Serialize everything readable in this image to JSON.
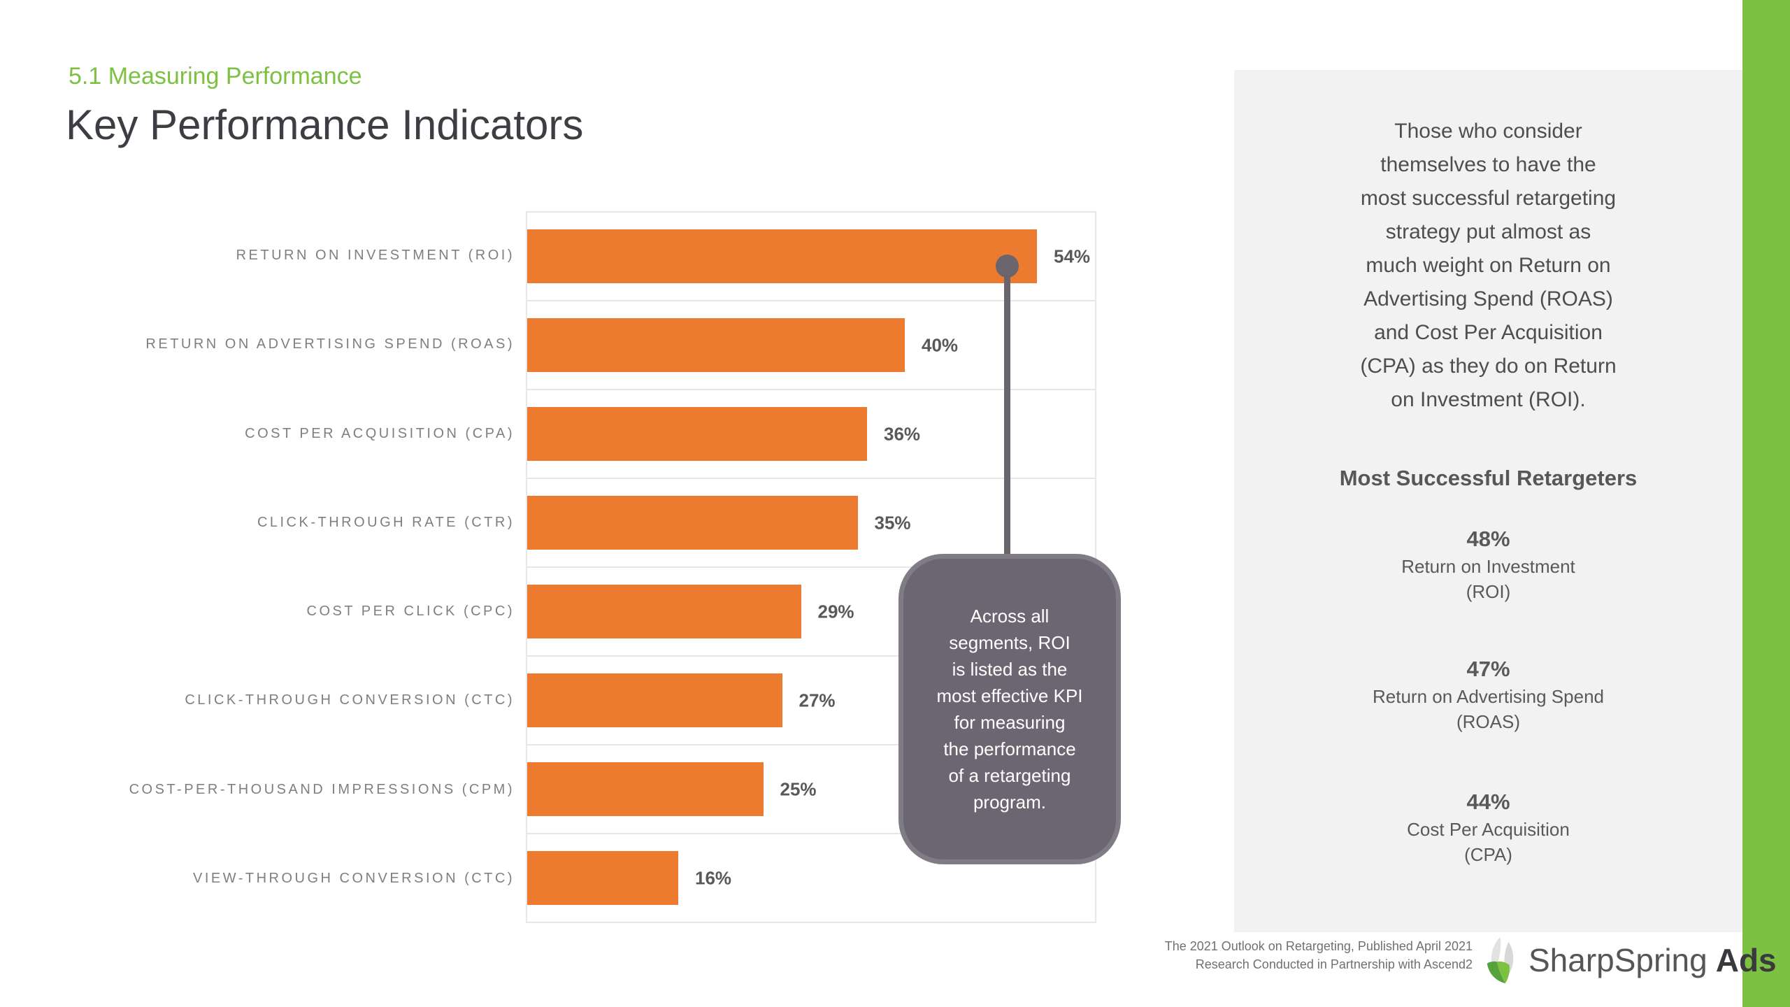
{
  "header": {
    "section": "5.1 Measuring Performance",
    "title": "Key Performance Indicators"
  },
  "chart_data": {
    "type": "bar",
    "orientation": "horizontal",
    "title": "Key Performance Indicators",
    "categories": [
      "RETURN ON INVESTMENT (ROI)",
      "RETURN ON ADVERTISING SPEND (ROAS)",
      "COST PER ACQUISITION (CPA)",
      "CLICK-THROUGH RATE (CTR)",
      "COST PER CLICK (CPC)",
      "CLICK-THROUGH CONVERSION (CTC)",
      "COST-PER-THOUSAND IMPRESSIONS (CPM)",
      "VIEW-THROUGH CONVERSION (CTC)"
    ],
    "values": [
      54,
      40,
      36,
      35,
      29,
      27,
      25,
      16
    ],
    "value_suffix": "%",
    "xlim": [
      0,
      60
    ],
    "grid": true,
    "legend": false
  },
  "callout": {
    "text": "Across all segments, ROI is listed as the most effective KPI for measuring the performance of a retargeting program.",
    "lines": [
      "Across all",
      "segments, ROI",
      "is listed as the",
      "most effective KPI",
      "for measuring",
      "the performance",
      "of a retargeting",
      "program."
    ],
    "anchor_category": "RETURN ON INVESTMENT (ROI)"
  },
  "sidebar": {
    "paragraph": "Those who consider themselves to have the most successful retargeting strategy put almost as much weight on Return on Advertising Spend (ROAS) and Cost Per Acquisition (CPA) as they do on Return on Investment (ROI).",
    "paragraph_lines": [
      "Those who consider",
      "themselves to have the",
      "most successful retargeting",
      "strategy put almost as",
      "much weight on Return on",
      "Advertising Spend (ROAS)",
      "and Cost Per Acquisition",
      "(CPA) as they do on Return",
      "on Investment (ROI)."
    ],
    "heading": "Most Successful Retargeters",
    "stats": [
      {
        "value": "48%",
        "label_lines": [
          "Return on Investment",
          "(ROI)"
        ]
      },
      {
        "value": "47%",
        "label_lines": [
          "Return on Advertising Spend",
          "(ROAS)"
        ]
      },
      {
        "value": "44%",
        "label_lines": [
          "Cost Per Acquisition",
          "(CPA)"
        ]
      }
    ]
  },
  "footer": {
    "note_lines": [
      "The 2021 Outlook on Retargeting, Published April 2021",
      "Research Conducted in Partnership with Ascend2"
    ],
    "brand_name": "SharpSpring",
    "brand_suffix": "Ads"
  },
  "colors": {
    "accent_green": "#7CC142",
    "bar_orange": "#ED7B2F",
    "callout_fill": "#6B6671",
    "callout_border": "#807C86",
    "connector_gray": "#6A646C",
    "sidebar_bg": "#F2F2F2"
  }
}
